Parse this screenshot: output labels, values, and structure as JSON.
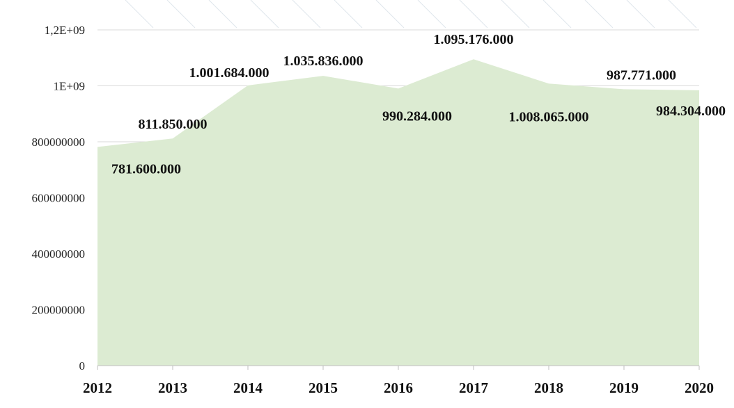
{
  "chart_data": {
    "type": "area",
    "categories": [
      "2012",
      "2013",
      "2014",
      "2015",
      "2016",
      "2017",
      "2018",
      "2019",
      "2020"
    ],
    "series": [
      {
        "values": [
          781600000,
          811850000,
          1001684000,
          1035836000,
          990284000,
          1095176000,
          1008065000,
          987771000,
          984304000
        ],
        "data_labels": [
          "781.600.000",
          "811.850.000",
          "1.001.684.000",
          "1.035.836.000",
          "990.284.000",
          "1.095.176.000",
          "1.008.065.000",
          "987.771.000",
          "984.304.000"
        ],
        "color": "#dcebd2"
      }
    ],
    "y_ticks": [
      {
        "value": 0,
        "label": "0"
      },
      {
        "value": 200000000,
        "label": "200000000"
      },
      {
        "value": 400000000,
        "label": "400000000"
      },
      {
        "value": 600000000,
        "label": "600000000"
      },
      {
        "value": 800000000,
        "label": "800000000"
      },
      {
        "value": 1000000000,
        "label": "1E+09"
      },
      {
        "value": 1200000000,
        "label": "1,2E+09"
      }
    ],
    "ylim": [
      0,
      1200000000
    ],
    "title": "",
    "xlabel": "",
    "ylabel": "",
    "grid": true,
    "legend": "none",
    "gridline_color": "#d9d9d9",
    "axis_color": "#bfbfbf"
  }
}
